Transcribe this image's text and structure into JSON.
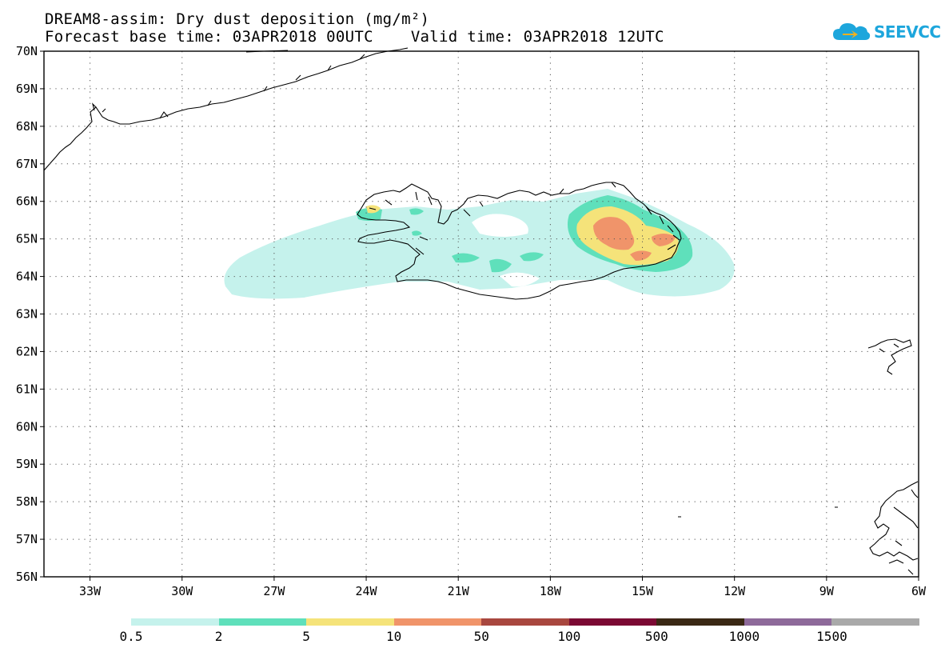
{
  "title_line1": "DREAM8-assim: Dry dust deposition (mg/m²)",
  "title_line2": "Forecast base time: 03APR2018 00UTC    Valid time: 03APR2018 12UTC",
  "logo_text": "SEEVCCC",
  "map": {
    "lon_range": [
      -34.5,
      -6
    ],
    "lat_range": [
      56,
      70
    ],
    "lat_ticks": [
      "70N",
      "69N",
      "68N",
      "67N",
      "66N",
      "65N",
      "64N",
      "63N",
      "62N",
      "61N",
      "60N",
      "59N",
      "58N",
      "57N",
      "56N"
    ],
    "lon_ticks": [
      {
        "lon": -33,
        "label": "33W"
      },
      {
        "lon": -30,
        "label": "30W"
      },
      {
        "lon": -27,
        "label": "27W"
      },
      {
        "lon": -24,
        "label": "24W"
      },
      {
        "lon": -21,
        "label": "21W"
      },
      {
        "lon": -18,
        "label": "18W"
      },
      {
        "lon": -15,
        "label": "15W"
      },
      {
        "lon": -12,
        "label": "12W"
      },
      {
        "lon": -9,
        "label": "9W"
      },
      {
        "lon": -6,
        "label": "6W"
      }
    ]
  },
  "colorbar": {
    "labels": [
      "0.5",
      "2",
      "5",
      "10",
      "50",
      "100",
      "500",
      "1000",
      "1500"
    ],
    "colors": [
      "#c5f2ec",
      "#5fe0bb",
      "#f5e37a",
      "#f0946a",
      "#a8473f",
      "#7b0933",
      "#3a2814",
      "#8e6a9a",
      "#a9a9a9"
    ]
  }
}
